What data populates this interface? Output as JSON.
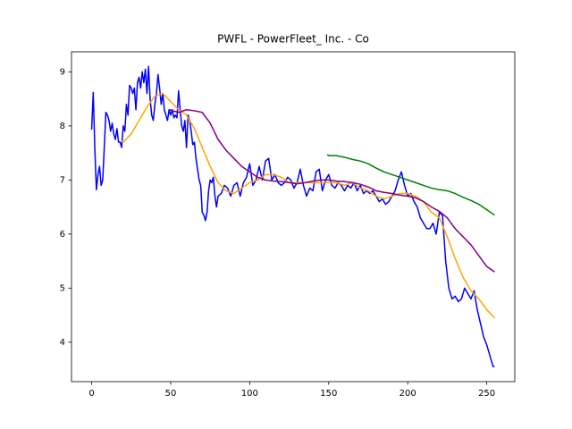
{
  "chart_data": {
    "type": "line",
    "title": "PWFL - PowerFleet_ Inc. - Co",
    "xlim": [
      -12.75,
      267.75
    ],
    "xticks": [
      0,
      50,
      100,
      150,
      200,
      250
    ],
    "ylim": [
      3.27,
      9.37
    ],
    "yticks": [
      4,
      5,
      6,
      7,
      8,
      9
    ],
    "series": [
      {
        "color": "#0000ff",
        "x": [
          0,
          1,
          2,
          3,
          4,
          5,
          6,
          7,
          8,
          9,
          10,
          11,
          12,
          13,
          14,
          15,
          16,
          17,
          18,
          19,
          20,
          21,
          22,
          23,
          24,
          25,
          26,
          27,
          28,
          29,
          30,
          31,
          32,
          33,
          34,
          35,
          36,
          37,
          38,
          39,
          40,
          41,
          42,
          43,
          44,
          45,
          46,
          47,
          48,
          49,
          50,
          51,
          52,
          53,
          54,
          55,
          56,
          57,
          58,
          59,
          60,
          61,
          62,
          63,
          64,
          65,
          66,
          67,
          68,
          69,
          70,
          71,
          72,
          73,
          74,
          75,
          76,
          77,
          78,
          79,
          80,
          82,
          84,
          86,
          88,
          90,
          92,
          94,
          96,
          98,
          100,
          102,
          104,
          106,
          108,
          110,
          112,
          114,
          116,
          118,
          120,
          122,
          124,
          126,
          128,
          130,
          132,
          134,
          136,
          138,
          140,
          142,
          144,
          146,
          148,
          150,
          152,
          154,
          156,
          158,
          160,
          162,
          164,
          166,
          168,
          170,
          172,
          174,
          176,
          178,
          180,
          182,
          184,
          186,
          188,
          190,
          192,
          194,
          196,
          198,
          200,
          202,
          204,
          206,
          208,
          210,
          212,
          214,
          216,
          218,
          220,
          222,
          224,
          226,
          228,
          230,
          232,
          234,
          236,
          238,
          240,
          242,
          244,
          246,
          248,
          250,
          252,
          254,
          255
        ],
        "values": [
          7.93,
          8.62,
          7.6,
          6.82,
          7.1,
          7.25,
          6.9,
          7.0,
          7.6,
          8.25,
          8.2,
          8.1,
          7.9,
          8.05,
          7.85,
          7.75,
          7.95,
          7.7,
          7.7,
          7.6,
          8.0,
          7.9,
          8.4,
          8.2,
          8.75,
          8.7,
          8.6,
          8.7,
          8.3,
          8.8,
          8.9,
          8.7,
          9.0,
          8.8,
          9.05,
          8.6,
          9.1,
          8.5,
          8.2,
          8.1,
          8.4,
          8.6,
          8.95,
          8.7,
          8.4,
          8.6,
          8.3,
          8.2,
          8.1,
          8.3,
          8.2,
          8.3,
          8.15,
          8.2,
          8.15,
          8.65,
          8.3,
          8.0,
          7.9,
          8.1,
          7.6,
          8.2,
          8.1,
          7.9,
          7.65,
          7.7,
          7.4,
          7.2,
          7.0,
          6.9,
          6.4,
          6.35,
          6.25,
          6.4,
          6.8,
          7.0,
          6.95,
          7.05,
          6.7,
          6.5,
          6.7,
          6.75,
          6.9,
          6.85,
          6.7,
          6.9,
          6.95,
          6.7,
          6.95,
          7.05,
          7.3,
          6.9,
          7.0,
          7.25,
          7.0,
          7.35,
          7.4,
          7.0,
          7.1,
          6.95,
          6.9,
          6.95,
          7.05,
          7.0,
          6.85,
          6.95,
          7.2,
          6.9,
          6.7,
          6.85,
          6.8,
          7.15,
          7.2,
          6.8,
          7.0,
          7.1,
          6.9,
          6.85,
          6.95,
          6.9,
          6.8,
          6.9,
          6.85,
          6.95,
          6.8,
          6.9,
          6.75,
          6.8,
          6.75,
          6.8,
          6.7,
          6.6,
          6.65,
          6.55,
          6.6,
          6.7,
          6.8,
          7.0,
          7.15,
          6.9,
          6.7,
          6.75,
          6.6,
          6.5,
          6.3,
          6.2,
          6.1,
          6.1,
          6.2,
          6.0,
          6.4,
          6.35,
          5.5,
          5.0,
          4.8,
          4.85,
          4.75,
          4.8,
          5.0,
          4.9,
          4.8,
          4.95,
          4.6,
          4.35,
          4.1,
          3.95,
          3.75,
          3.55,
          3.55
        ]
      },
      {
        "color": "#ffa500",
        "x": [
          19,
          20,
          25,
          30,
          35,
          40,
          45,
          50,
          55,
          60,
          65,
          70,
          75,
          80,
          85,
          90,
          95,
          100,
          105,
          110,
          115,
          120,
          125,
          130,
          135,
          140,
          145,
          150,
          155,
          160,
          165,
          170,
          175,
          180,
          185,
          190,
          195,
          200,
          205,
          210,
          215,
          220,
          225,
          230,
          235,
          240,
          245,
          250,
          255
        ],
        "values": [
          7.72,
          7.7,
          7.85,
          8.1,
          8.35,
          8.55,
          8.6,
          8.45,
          8.3,
          8.2,
          7.95,
          7.6,
          7.25,
          6.95,
          6.8,
          6.75,
          6.85,
          6.95,
          7.0,
          7.1,
          7.1,
          7.05,
          6.95,
          6.95,
          6.95,
          6.95,
          6.95,
          6.95,
          6.95,
          6.9,
          6.95,
          6.85,
          6.8,
          6.7,
          6.65,
          6.7,
          6.75,
          6.75,
          6.7,
          6.6,
          6.4,
          6.3,
          5.95,
          5.55,
          5.2,
          4.95,
          4.8,
          4.6,
          4.45
        ]
      },
      {
        "color": "#800080",
        "x": [
          49,
          55,
          60,
          65,
          70,
          75,
          80,
          85,
          90,
          95,
          100,
          105,
          110,
          115,
          120,
          125,
          130,
          135,
          140,
          145,
          150,
          155,
          160,
          165,
          170,
          175,
          180,
          185,
          190,
          195,
          200,
          205,
          210,
          215,
          220,
          225,
          230,
          235,
          240,
          245,
          250,
          255
        ],
        "values": [
          8.3,
          8.25,
          8.3,
          8.28,
          8.25,
          8.05,
          7.75,
          7.55,
          7.4,
          7.25,
          7.15,
          7.05,
          7.0,
          6.98,
          6.97,
          6.95,
          6.93,
          6.95,
          6.98,
          7.0,
          7.0,
          6.98,
          6.97,
          6.95,
          6.92,
          6.87,
          6.8,
          6.77,
          6.75,
          6.72,
          6.7,
          6.67,
          6.6,
          6.5,
          6.42,
          6.3,
          6.1,
          5.95,
          5.8,
          5.6,
          5.4,
          5.3
        ]
      },
      {
        "color": "#008000",
        "x": [
          149,
          150,
          155,
          160,
          165,
          170,
          175,
          180,
          185,
          190,
          195,
          200,
          205,
          210,
          215,
          220,
          225,
          230,
          235,
          240,
          245,
          250,
          255
        ],
        "values": [
          7.47,
          7.45,
          7.45,
          7.42,
          7.38,
          7.35,
          7.3,
          7.22,
          7.15,
          7.1,
          7.05,
          7.0,
          6.95,
          6.9,
          6.85,
          6.82,
          6.8,
          6.75,
          6.68,
          6.62,
          6.55,
          6.45,
          6.35
        ]
      }
    ]
  }
}
